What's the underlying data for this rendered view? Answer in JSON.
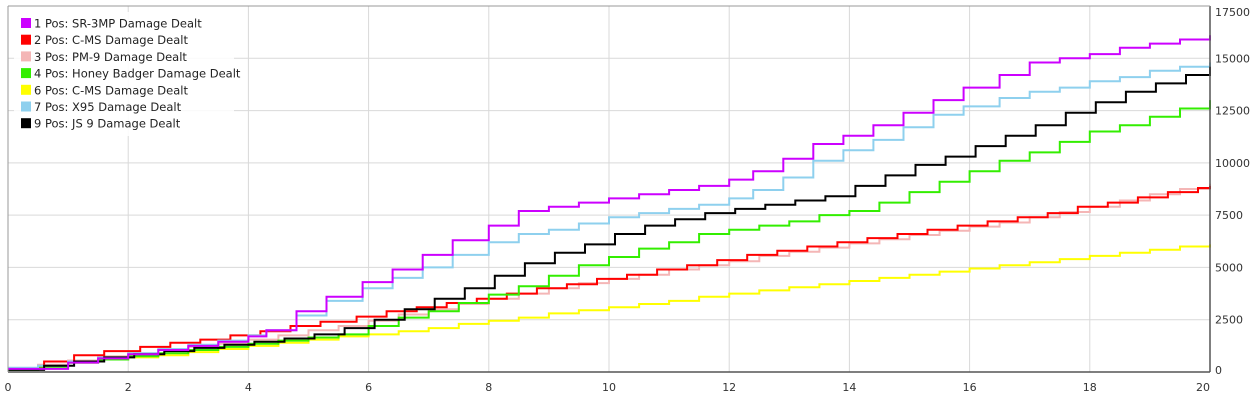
{
  "chart_data": {
    "type": "line",
    "step": true,
    "title": "",
    "xlabel": "",
    "ylabel": "",
    "xlim": [
      0,
      20
    ],
    "ylim": [
      0,
      17500
    ],
    "x_ticks": [
      0,
      2,
      4,
      6,
      8,
      10,
      12,
      14,
      16,
      18,
      20
    ],
    "y_ticks": [
      0,
      2500,
      5000,
      7500,
      10000,
      12500,
      15000,
      17500
    ],
    "grid": true,
    "y_axis_side": "right",
    "legend_position": "top-left",
    "series": [
      {
        "name": "1 Pos: SR-3MP Damage Dealt",
        "color": "#cc00ff",
        "points": [
          [
            0,
            150
          ],
          [
            0.5,
            150
          ],
          [
            1,
            450
          ],
          [
            1.5,
            650
          ],
          [
            2,
            850
          ],
          [
            2.5,
            1050
          ],
          [
            3,
            1250
          ],
          [
            3.5,
            1450
          ],
          [
            4,
            1700
          ],
          [
            4.3,
            2000
          ],
          [
            4.8,
            2900
          ],
          [
            5.3,
            3600
          ],
          [
            5.9,
            4300
          ],
          [
            6.4,
            4900
          ],
          [
            6.9,
            5600
          ],
          [
            7.4,
            6300
          ],
          [
            8,
            7000
          ],
          [
            8.5,
            7700
          ],
          [
            9,
            7900
          ],
          [
            9.5,
            8100
          ],
          [
            10,
            8300
          ],
          [
            10.5,
            8500
          ],
          [
            11,
            8700
          ],
          [
            11.5,
            8900
          ],
          [
            12,
            9200
          ],
          [
            12.4,
            9600
          ],
          [
            12.9,
            10200
          ],
          [
            13.4,
            10900
          ],
          [
            13.9,
            11300
          ],
          [
            14.4,
            11800
          ],
          [
            14.9,
            12400
          ],
          [
            15.4,
            13000
          ],
          [
            15.9,
            13600
          ],
          [
            16.5,
            14200
          ],
          [
            17,
            14800
          ],
          [
            17.5,
            15000
          ],
          [
            18,
            15200
          ],
          [
            18.5,
            15500
          ],
          [
            19,
            15700
          ],
          [
            19.5,
            15900
          ],
          [
            20,
            16100
          ]
        ]
      },
      {
        "name": "2 Pos: C-MS Damage Dealt",
        "color": "#ff0000",
        "points": [
          [
            0,
            180
          ],
          [
            0.6,
            500
          ],
          [
            1.1,
            800
          ],
          [
            1.6,
            1000
          ],
          [
            2.2,
            1200
          ],
          [
            2.7,
            1400
          ],
          [
            3.2,
            1550
          ],
          [
            3.7,
            1750
          ],
          [
            4.2,
            1950
          ],
          [
            4.7,
            2200
          ],
          [
            5.2,
            2400
          ],
          [
            5.8,
            2650
          ],
          [
            6.3,
            2900
          ],
          [
            6.8,
            3100
          ],
          [
            7.3,
            3300
          ],
          [
            7.8,
            3500
          ],
          [
            8.3,
            3750
          ],
          [
            8.8,
            4000
          ],
          [
            9.3,
            4200
          ],
          [
            9.8,
            4450
          ],
          [
            10.3,
            4650
          ],
          [
            10.8,
            4900
          ],
          [
            11.3,
            5100
          ],
          [
            11.8,
            5350
          ],
          [
            12.3,
            5600
          ],
          [
            12.8,
            5800
          ],
          [
            13.3,
            6000
          ],
          [
            13.8,
            6200
          ],
          [
            14.3,
            6400
          ],
          [
            14.8,
            6600
          ],
          [
            15.3,
            6800
          ],
          [
            15.8,
            7000
          ],
          [
            16.3,
            7200
          ],
          [
            16.8,
            7400
          ],
          [
            17.3,
            7600
          ],
          [
            17.8,
            7900
          ],
          [
            18.3,
            8100
          ],
          [
            18.8,
            8350
          ],
          [
            19.3,
            8600
          ],
          [
            19.8,
            8800
          ],
          [
            20,
            8900
          ]
        ]
      },
      {
        "name": "3 Pos: PM-9 Damage Dealt",
        "color": "#f4b6b6",
        "points": [
          [
            0,
            150
          ],
          [
            0.5,
            350
          ],
          [
            1,
            550
          ],
          [
            1.5,
            750
          ],
          [
            2,
            900
          ],
          [
            2.5,
            1050
          ],
          [
            3,
            1200
          ],
          [
            3.5,
            1350
          ],
          [
            4,
            1550
          ],
          [
            4.5,
            1750
          ],
          [
            5,
            2000
          ],
          [
            5.5,
            2200
          ],
          [
            6,
            2450
          ],
          [
            6.5,
            2750
          ],
          [
            7,
            3000
          ],
          [
            7.5,
            3250
          ],
          [
            8,
            3500
          ],
          [
            8.5,
            3750
          ],
          [
            9,
            4000
          ],
          [
            9.5,
            4250
          ],
          [
            10,
            4450
          ],
          [
            10.5,
            4650
          ],
          [
            11,
            4900
          ],
          [
            11.5,
            5100
          ],
          [
            12,
            5300
          ],
          [
            12.5,
            5550
          ],
          [
            13,
            5750
          ],
          [
            13.5,
            5950
          ],
          [
            14,
            6150
          ],
          [
            14.5,
            6350
          ],
          [
            15,
            6550
          ],
          [
            15.5,
            6750
          ],
          [
            16,
            6950
          ],
          [
            16.5,
            7150
          ],
          [
            17,
            7400
          ],
          [
            17.5,
            7650
          ],
          [
            18,
            7900
          ],
          [
            18.5,
            8200
          ],
          [
            19,
            8500
          ],
          [
            19.5,
            8750
          ],
          [
            20,
            9000
          ]
        ]
      },
      {
        "name": "4 Pos: Honey Badger Damage Dealt",
        "color": "#33ee00",
        "points": [
          [
            0,
            100
          ],
          [
            0.5,
            250
          ],
          [
            1,
            450
          ],
          [
            1.5,
            600
          ],
          [
            2,
            750
          ],
          [
            2.5,
            900
          ],
          [
            3,
            1050
          ],
          [
            3.5,
            1200
          ],
          [
            4,
            1350
          ],
          [
            4.5,
            1500
          ],
          [
            5,
            1650
          ],
          [
            5.5,
            1800
          ],
          [
            6,
            2200
          ],
          [
            6.5,
            2600
          ],
          [
            7,
            2900
          ],
          [
            7.5,
            3300
          ],
          [
            8,
            3700
          ],
          [
            8.5,
            4100
          ],
          [
            9,
            4600
          ],
          [
            9.5,
            5100
          ],
          [
            10,
            5500
          ],
          [
            10.5,
            5900
          ],
          [
            11,
            6200
          ],
          [
            11.5,
            6600
          ],
          [
            12,
            6800
          ],
          [
            12.5,
            7000
          ],
          [
            13,
            7200
          ],
          [
            13.5,
            7500
          ],
          [
            14,
            7700
          ],
          [
            14.5,
            8100
          ],
          [
            15,
            8600
          ],
          [
            15.5,
            9100
          ],
          [
            16,
            9600
          ],
          [
            16.5,
            10100
          ],
          [
            17,
            10500
          ],
          [
            17.5,
            11000
          ],
          [
            18,
            11500
          ],
          [
            18.5,
            11800
          ],
          [
            19,
            12200
          ],
          [
            19.5,
            12600
          ],
          [
            20,
            13000
          ]
        ]
      },
      {
        "name": "6 Pos: C-MS Damage Dealt",
        "color": "#ffff00",
        "points": [
          [
            0,
            120
          ],
          [
            0.5,
            300
          ],
          [
            1,
            450
          ],
          [
            1.5,
            600
          ],
          [
            2,
            700
          ],
          [
            2.5,
            800
          ],
          [
            3,
            950
          ],
          [
            3.5,
            1100
          ],
          [
            4,
            1250
          ],
          [
            4.5,
            1400
          ],
          [
            5,
            1550
          ],
          [
            5.5,
            1700
          ],
          [
            6,
            1800
          ],
          [
            6.5,
            1950
          ],
          [
            7,
            2100
          ],
          [
            7.5,
            2300
          ],
          [
            8,
            2450
          ],
          [
            8.5,
            2600
          ],
          [
            9,
            2800
          ],
          [
            9.5,
            2950
          ],
          [
            10,
            3100
          ],
          [
            10.5,
            3250
          ],
          [
            11,
            3400
          ],
          [
            11.5,
            3600
          ],
          [
            12,
            3750
          ],
          [
            12.5,
            3900
          ],
          [
            13,
            4050
          ],
          [
            13.5,
            4200
          ],
          [
            14,
            4350
          ],
          [
            14.5,
            4500
          ],
          [
            15,
            4650
          ],
          [
            15.5,
            4800
          ],
          [
            16,
            4950
          ],
          [
            16.5,
            5100
          ],
          [
            17,
            5250
          ],
          [
            17.5,
            5400
          ],
          [
            18,
            5550
          ],
          [
            18.5,
            5700
          ],
          [
            19,
            5850
          ],
          [
            19.5,
            6000
          ],
          [
            20,
            6100
          ]
        ]
      },
      {
        "name": "7 Pos: X95 Damage Dealt",
        "color": "#8ed0ee",
        "points": [
          [
            0,
            200
          ],
          [
            0.5,
            300
          ],
          [
            1,
            500
          ],
          [
            1.5,
            700
          ],
          [
            2,
            900
          ],
          [
            2.5,
            1100
          ],
          [
            3,
            1300
          ],
          [
            3.5,
            1500
          ],
          [
            4,
            1750
          ],
          [
            4.3,
            2000
          ],
          [
            4.8,
            2700
          ],
          [
            5.3,
            3400
          ],
          [
            5.9,
            4000
          ],
          [
            6.4,
            4500
          ],
          [
            6.9,
            5000
          ],
          [
            7.4,
            5600
          ],
          [
            8,
            6200
          ],
          [
            8.5,
            6600
          ],
          [
            9,
            6800
          ],
          [
            9.5,
            7100
          ],
          [
            10,
            7400
          ],
          [
            10.5,
            7600
          ],
          [
            11,
            7800
          ],
          [
            11.5,
            8000
          ],
          [
            12,
            8300
          ],
          [
            12.4,
            8700
          ],
          [
            12.9,
            9300
          ],
          [
            13.4,
            10100
          ],
          [
            13.9,
            10600
          ],
          [
            14.4,
            11100
          ],
          [
            14.9,
            11700
          ],
          [
            15.4,
            12300
          ],
          [
            15.9,
            12700
          ],
          [
            16.5,
            13100
          ],
          [
            17,
            13400
          ],
          [
            17.5,
            13600
          ],
          [
            18,
            13900
          ],
          [
            18.5,
            14100
          ],
          [
            19,
            14400
          ],
          [
            19.5,
            14600
          ],
          [
            20,
            14800
          ]
        ]
      },
      {
        "name": "9 Pos: JS 9 Damage Dealt",
        "color": "#000000",
        "points": [
          [
            0,
            100
          ],
          [
            0.6,
            300
          ],
          [
            1.1,
            500
          ],
          [
            1.6,
            700
          ],
          [
            2.1,
            850
          ],
          [
            2.6,
            1000
          ],
          [
            3.1,
            1150
          ],
          [
            3.6,
            1300
          ],
          [
            4.1,
            1450
          ],
          [
            4.6,
            1600
          ],
          [
            5.1,
            1800
          ],
          [
            5.6,
            2100
          ],
          [
            6.1,
            2500
          ],
          [
            6.6,
            3000
          ],
          [
            7.1,
            3500
          ],
          [
            7.6,
            4000
          ],
          [
            8.1,
            4600
          ],
          [
            8.6,
            5200
          ],
          [
            9.1,
            5700
          ],
          [
            9.6,
            6100
          ],
          [
            10.1,
            6600
          ],
          [
            10.6,
            7000
          ],
          [
            11.1,
            7300
          ],
          [
            11.6,
            7600
          ],
          [
            12.1,
            7800
          ],
          [
            12.6,
            8000
          ],
          [
            13.1,
            8200
          ],
          [
            13.6,
            8400
          ],
          [
            14.1,
            8900
          ],
          [
            14.6,
            9400
          ],
          [
            15.1,
            9900
          ],
          [
            15.6,
            10300
          ],
          [
            16.1,
            10800
          ],
          [
            16.6,
            11300
          ],
          [
            17.1,
            11800
          ],
          [
            17.6,
            12400
          ],
          [
            18.1,
            12900
          ],
          [
            18.6,
            13400
          ],
          [
            19.1,
            13800
          ],
          [
            19.6,
            14200
          ],
          [
            20,
            14600
          ]
        ]
      }
    ]
  }
}
